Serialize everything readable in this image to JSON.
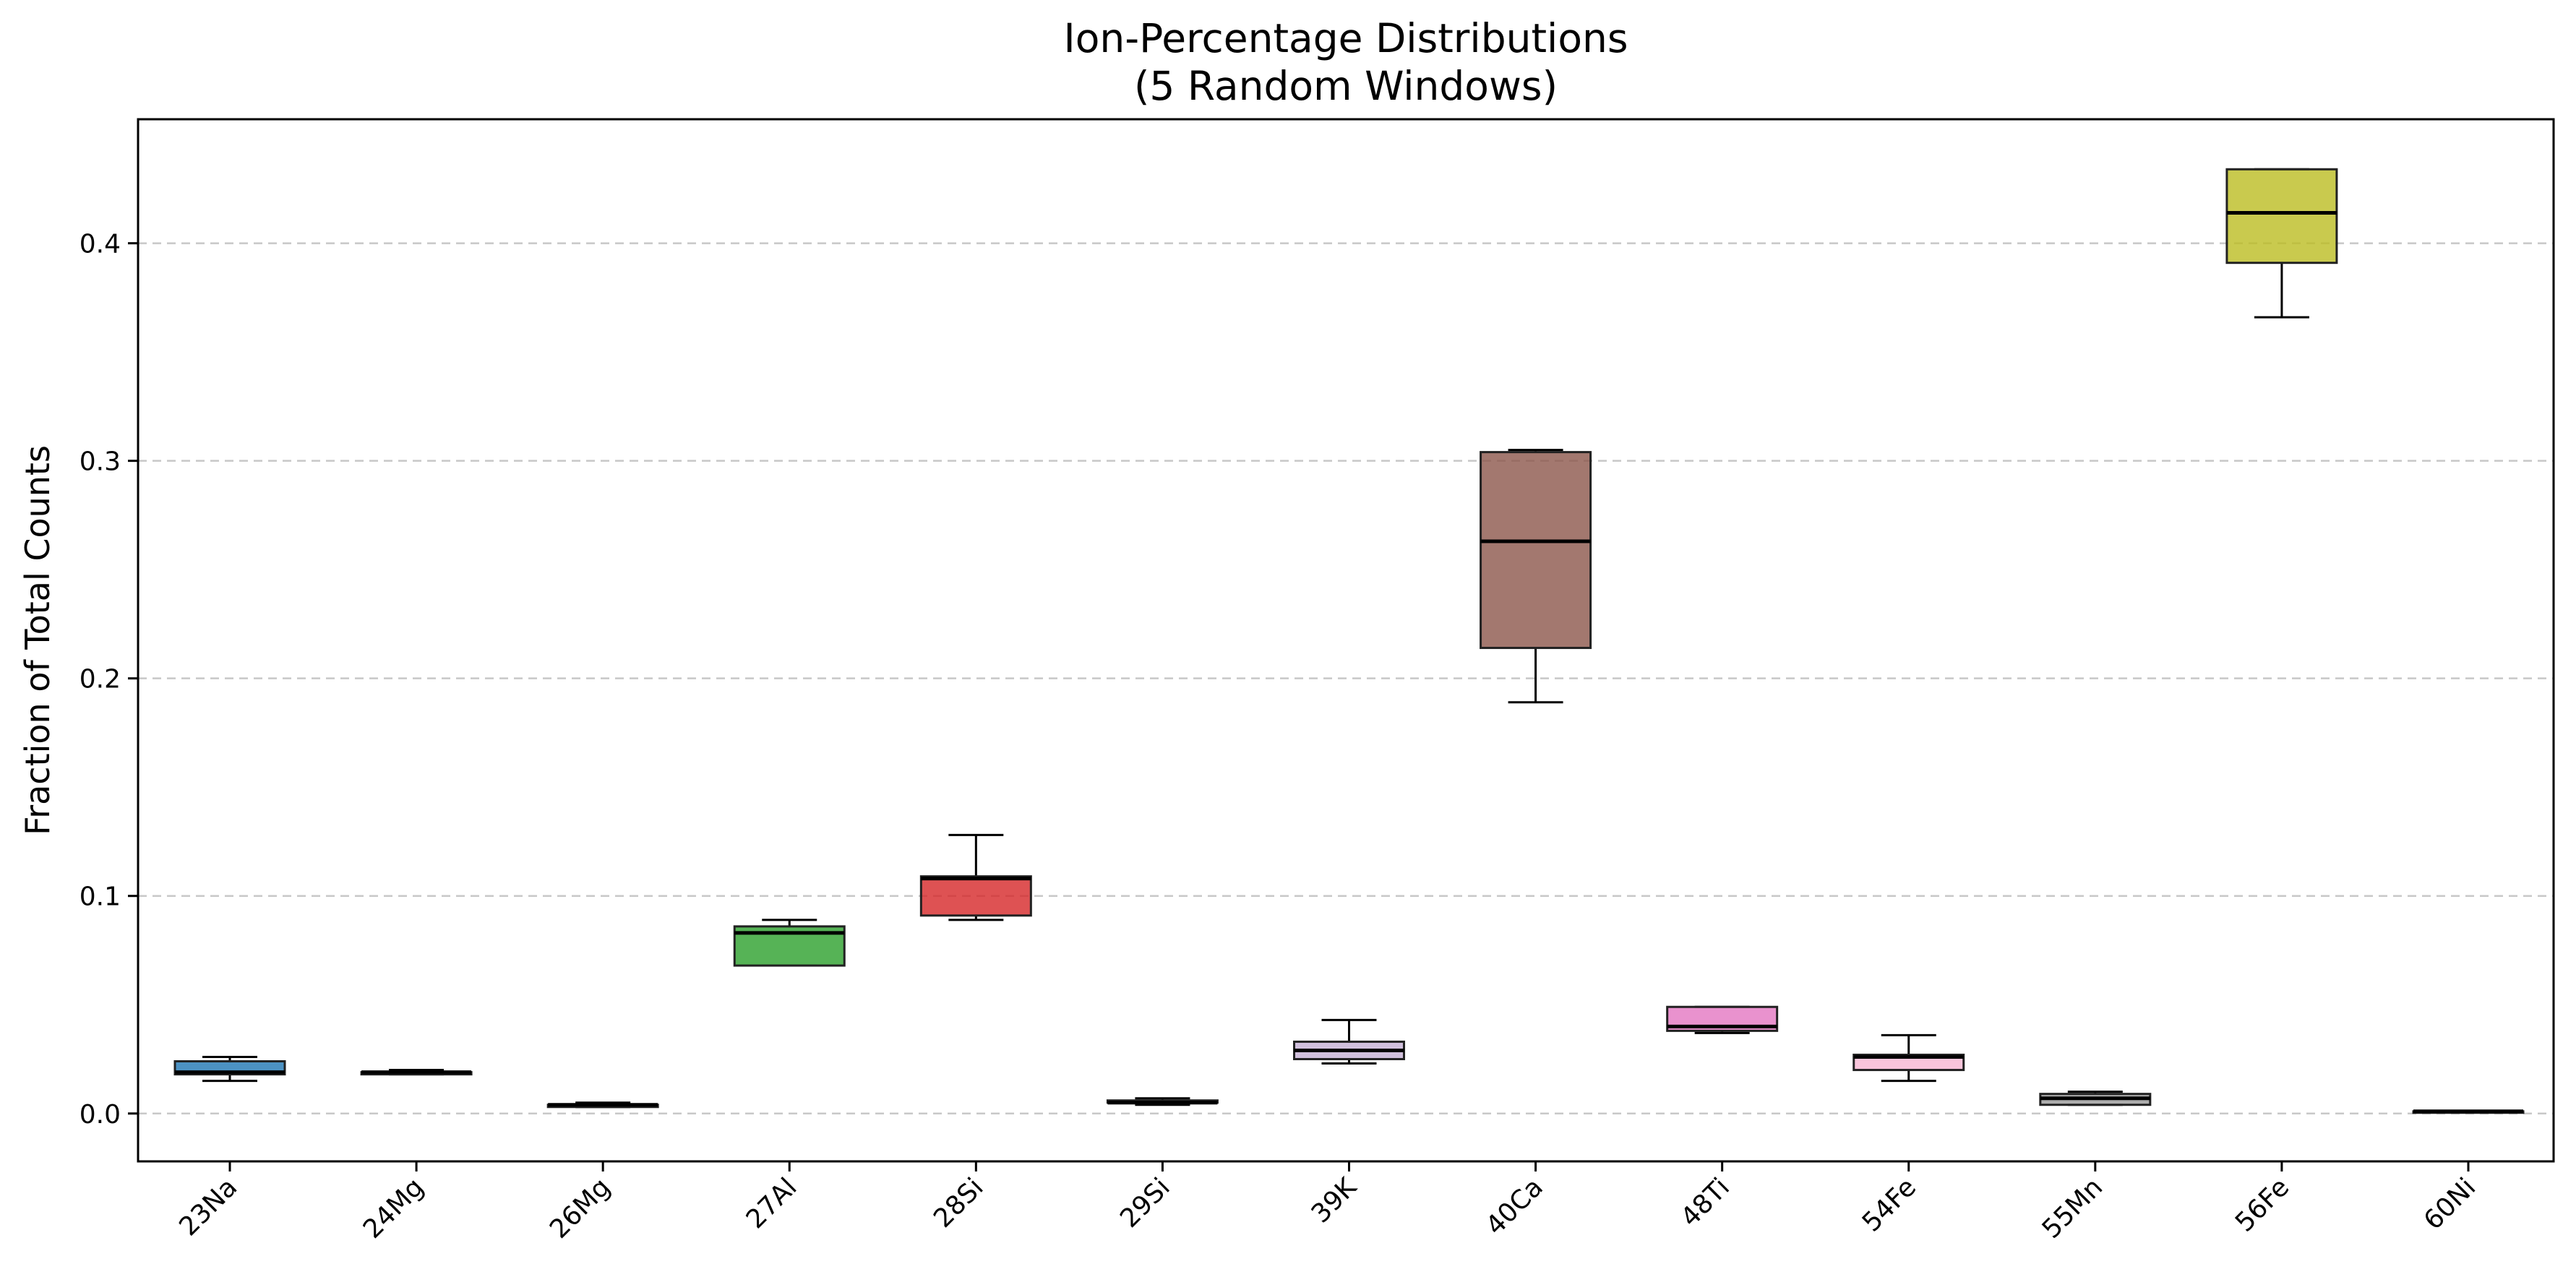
{
  "chart_data": {
    "type": "box",
    "title_lines": [
      "Ion-Percentage Distributions",
      "(5 Random Windows)"
    ],
    "xlabel": "",
    "ylabel": "Fraction of Total Counts",
    "ylim": [
      -0.022,
      0.457
    ],
    "yticks": [
      0.0,
      0.1,
      0.2,
      0.3,
      0.4
    ],
    "ytick_labels": [
      "0.0",
      "0.1",
      "0.2",
      "0.3",
      "0.4"
    ],
    "grid": {
      "axis": "y",
      "style": "dashed"
    },
    "categories": [
      "23Na",
      "24Mg",
      "26Mg",
      "27Al",
      "28Si",
      "29Si",
      "39K",
      "40Ca",
      "48Ti",
      "54Fe",
      "55Mn",
      "56Fe",
      "60Ni"
    ],
    "boxes": [
      {
        "label": "23Na",
        "min": 0.015,
        "q1": 0.018,
        "median": 0.019,
        "q3": 0.024,
        "max": 0.026,
        "color": "#1f77b4"
      },
      {
        "label": "24Mg",
        "min": 0.018,
        "q1": 0.018,
        "median": 0.019,
        "q3": 0.019,
        "max": 0.02,
        "color": "#ff7f0e"
      },
      {
        "label": "26Mg",
        "min": 0.003,
        "q1": 0.003,
        "median": 0.004,
        "q3": 0.004,
        "max": 0.005,
        "color": "#7f7f7f"
      },
      {
        "label": "27Al",
        "min": 0.068,
        "q1": 0.068,
        "median": 0.083,
        "q3": 0.086,
        "max": 0.089,
        "color": "#2ca02c"
      },
      {
        "label": "28Si",
        "min": 0.089,
        "q1": 0.091,
        "median": 0.108,
        "q3": 0.109,
        "max": 0.128,
        "color": "#d62728"
      },
      {
        "label": "29Si",
        "min": 0.004,
        "q1": 0.005,
        "median": 0.005,
        "q3": 0.006,
        "max": 0.007,
        "color": "#9467bd"
      },
      {
        "label": "39K",
        "min": 0.023,
        "q1": 0.025,
        "median": 0.029,
        "q3": 0.033,
        "max": 0.043,
        "color": "#c5b0d5"
      },
      {
        "label": "40Ca",
        "min": 0.189,
        "q1": 0.214,
        "median": 0.263,
        "q3": 0.304,
        "max": 0.305,
        "color": "#8c564b"
      },
      {
        "label": "48Ti",
        "min": 0.037,
        "q1": 0.038,
        "median": 0.04,
        "q3": 0.049,
        "max": 0.049,
        "color": "#e377c2"
      },
      {
        "label": "54Fe",
        "min": 0.015,
        "q1": 0.02,
        "median": 0.026,
        "q3": 0.027,
        "max": 0.036,
        "color": "#f7b6d2"
      },
      {
        "label": "55Mn",
        "min": 0.004,
        "q1": 0.004,
        "median": 0.007,
        "q3": 0.009,
        "max": 0.01,
        "color": "#999999"
      },
      {
        "label": "56Fe",
        "min": 0.366,
        "q1": 0.391,
        "median": 0.414,
        "q3": 0.434,
        "max": 0.434,
        "color": "#bcbd22"
      },
      {
        "label": "60Ni",
        "min": 0.0005,
        "q1": 0.0005,
        "median": 0.001,
        "q3": 0.001,
        "max": 0.001,
        "color": "#17becf"
      }
    ]
  }
}
